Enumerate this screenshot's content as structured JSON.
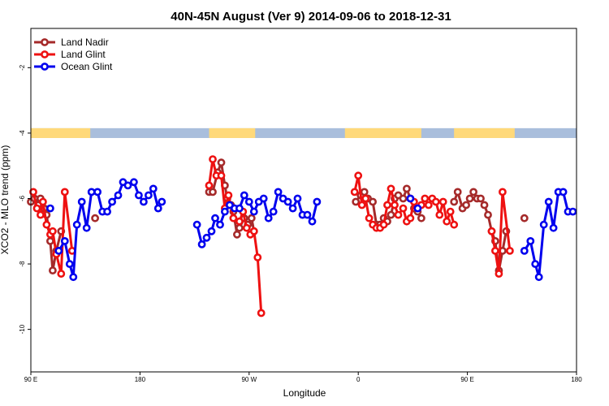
{
  "chart_data": {
    "type": "line",
    "title": "40N-45N August (Ver 9)   2014-09-06 to 2018-12-31",
    "xlabel": "Longitude",
    "ylabel": "XCO2 - MLO trend (ppm)",
    "xlim": [
      90,
      540
    ],
    "ylim": [
      -11.3,
      -0.8
    ],
    "x_ticks": [
      {
        "value": 90,
        "label": "90 E"
      },
      {
        "value": 180,
        "label": "180"
      },
      {
        "value": 270,
        "label": "90 W"
      },
      {
        "value": 360,
        "label": "0"
      },
      {
        "value": 450,
        "label": "90 E"
      },
      {
        "value": 540,
        "label": "180"
      }
    ],
    "y_ticks": [
      {
        "value": -2,
        "label": "-2"
      },
      {
        "value": -4,
        "label": "-4"
      },
      {
        "value": -6,
        "label": "-6"
      },
      {
        "value": -8,
        "label": "-8"
      },
      {
        "value": -10,
        "label": "-10"
      }
    ],
    "grid": false,
    "legend_position": "top-left",
    "land_ocean_strip": {
      "y_range": [
        -4.15,
        -3.85
      ],
      "land_color": "#ffd97a",
      "ocean_color": "#a9bedc",
      "land_lon_ranges": [
        [
          90,
          139
        ],
        [
          237,
          275
        ],
        [
          349,
          412
        ],
        [
          439,
          489
        ]
      ]
    },
    "series": [
      {
        "name": "Land Nadir",
        "color": "#a52a2a",
        "segments": [
          [
            [
              90,
              -6.1
            ],
            [
              93,
              -6.0
            ],
            [
              96,
              -6.2
            ],
            [
              98,
              -6.0
            ],
            [
              101,
              -6.3
            ],
            [
              103,
              -6.5
            ],
            [
              106,
              -7.3
            ],
            [
              108,
              -8.2
            ],
            [
              111,
              -7.6
            ],
            [
              115,
              -7.0
            ]
          ],
          [
            [
              143,
              -6.6
            ]
          ],
          [
            [
              237,
              -5.8
            ],
            [
              240,
              -5.8
            ],
            [
              244,
              -5.2
            ],
            [
              247,
              -4.9
            ],
            [
              250,
              -5.6
            ],
            [
              252,
              -6.0
            ],
            [
              255,
              -6.2
            ],
            [
              257,
              -6.4
            ],
            [
              260,
              -7.1
            ],
            [
              262,
              -6.9
            ],
            [
              266,
              -6.6
            ],
            [
              269,
              -6.8
            ],
            [
              272,
              -6.6
            ],
            [
              274,
              -7.0
            ]
          ],
          [
            [
              358,
              -6.1
            ],
            [
              362,
              -5.9
            ],
            [
              365,
              -5.8
            ],
            [
              368,
              -6.0
            ],
            [
              372,
              -6.1
            ],
            [
              375,
              -6.8
            ],
            [
              378,
              -6.8
            ],
            [
              381,
              -6.6
            ],
            [
              384,
              -6.7
            ],
            [
              387,
              -6.5
            ],
            [
              390,
              -6.0
            ],
            [
              393,
              -5.9
            ],
            [
              397,
              -6.0
            ],
            [
              400,
              -5.7
            ],
            [
              403,
              -6.0
            ],
            [
              406,
              -6.3
            ],
            [
              409,
              -6.4
            ],
            [
              412,
              -6.6
            ]
          ],
          [
            [
              439,
              -6.1
            ],
            [
              442,
              -5.8
            ],
            [
              446,
              -6.3
            ],
            [
              449,
              -6.2
            ],
            [
              452,
              -6.0
            ],
            [
              455,
              -5.8
            ],
            [
              458,
              -6.0
            ],
            [
              461,
              -6.0
            ],
            [
              464,
              -6.2
            ],
            [
              467,
              -6.5
            ],
            [
              470,
              -7.0
            ],
            [
              473,
              -7.3
            ],
            [
              476,
              -8.2
            ],
            [
              479,
              -7.6
            ],
            [
              482,
              -7.0
            ]
          ],
          [
            [
              497,
              -6.6
            ]
          ]
        ]
      },
      {
        "name": "Land Glint",
        "color": "#ee1111",
        "segments": [
          [
            [
              92,
              -5.8
            ],
            [
              95,
              -6.3
            ],
            [
              98,
              -6.5
            ],
            [
              100,
              -6.1
            ],
            [
              103,
              -6.8
            ],
            [
              106,
              -7.1
            ],
            [
              108,
              -7.0
            ],
            [
              111,
              -7.7
            ],
            [
              115,
              -8.3
            ],
            [
              118,
              -5.8
            ],
            [
              124,
              -7.6
            ]
          ],
          [
            [
              237,
              -5.6
            ],
            [
              240,
              -4.8
            ],
            [
              243,
              -5.3
            ],
            [
              247,
              -5.3
            ],
            [
              250,
              -6.3
            ],
            [
              253,
              -5.9
            ],
            [
              257,
              -6.6
            ],
            [
              262,
              -6.7
            ],
            [
              265,
              -6.4
            ],
            [
              268,
              -6.9
            ],
            [
              271,
              -7.1
            ],
            [
              274,
              -7.0
            ],
            [
              277,
              -7.8
            ],
            [
              280,
              -9.5
            ]
          ],
          [
            [
              357,
              -5.8
            ],
            [
              360,
              -5.3
            ],
            [
              363,
              -6.2
            ],
            [
              366,
              -6.0
            ],
            [
              369,
              -6.6
            ],
            [
              372,
              -6.8
            ],
            [
              375,
              -6.9
            ],
            [
              378,
              -6.9
            ],
            [
              381,
              -6.8
            ],
            [
              384,
              -6.2
            ],
            [
              387,
              -5.7
            ],
            [
              390,
              -6.2
            ],
            [
              393,
              -6.5
            ],
            [
              397,
              -6.3
            ],
            [
              400,
              -6.7
            ],
            [
              403,
              -6.6
            ],
            [
              406,
              -6.1
            ],
            [
              409,
              -6.3
            ],
            [
              412,
              -6.2
            ],
            [
              415,
              -6.0
            ],
            [
              418,
              -6.2
            ],
            [
              421,
              -6.0
            ],
            [
              424,
              -6.1
            ],
            [
              427,
              -6.5
            ],
            [
              430,
              -6.1
            ],
            [
              433,
              -6.7
            ],
            [
              436,
              -6.4
            ],
            [
              439,
              -6.8
            ]
          ],
          [
            [
              470,
              -7.0
            ],
            [
              473,
              -7.6
            ],
            [
              476,
              -8.3
            ],
            [
              479,
              -5.8
            ],
            [
              485,
              -7.6
            ]
          ]
        ]
      },
      {
        "name": "Ocean Glint",
        "color": "#0000ee",
        "segments": [
          [
            [
              106,
              -6.3
            ]
          ],
          [
            [
              113,
              -7.6
            ],
            [
              118,
              -7.3
            ],
            [
              122,
              -8.0
            ],
            [
              125,
              -8.4
            ],
            [
              128,
              -6.8
            ],
            [
              132,
              -6.1
            ],
            [
              136,
              -6.9
            ],
            [
              140,
              -5.8
            ],
            [
              145,
              -5.8
            ],
            [
              149,
              -6.4
            ],
            [
              153,
              -6.4
            ],
            [
              157,
              -6.1
            ],
            [
              162,
              -5.9
            ],
            [
              166,
              -5.5
            ],
            [
              170,
              -5.6
            ],
            [
              175,
              -5.5
            ],
            [
              179,
              -5.9
            ],
            [
              183,
              -6.1
            ],
            [
              187,
              -5.9
            ],
            [
              191,
              -5.7
            ],
            [
              195,
              -6.3
            ],
            [
              198,
              -6.1
            ]
          ],
          [
            [
              227,
              -6.8
            ],
            [
              231,
              -7.4
            ],
            [
              235,
              -7.2
            ],
            [
              239,
              -7.0
            ],
            [
              242,
              -6.6
            ],
            [
              246,
              -6.8
            ],
            [
              250,
              -6.4
            ],
            [
              254,
              -6.2
            ],
            [
              258,
              -6.3
            ],
            [
              262,
              -6.3
            ],
            [
              266,
              -5.9
            ],
            [
              270,
              -6.1
            ],
            [
              274,
              -6.4
            ],
            [
              278,
              -6.1
            ],
            [
              282,
              -6.0
            ],
            [
              286,
              -6.6
            ],
            [
              290,
              -6.4
            ],
            [
              294,
              -5.8
            ],
            [
              298,
              -6.0
            ],
            [
              302,
              -6.1
            ],
            [
              306,
              -6.3
            ],
            [
              310,
              -6.0
            ],
            [
              314,
              -6.5
            ],
            [
              318,
              -6.5
            ],
            [
              322,
              -6.7
            ],
            [
              326,
              -6.1
            ]
          ],
          [
            [
              403,
              -6.0
            ]
          ],
          [
            [
              409,
              -6.3
            ]
          ],
          [
            [
              497,
              -7.6
            ],
            [
              502,
              -7.3
            ],
            [
              506,
              -8.0
            ],
            [
              509,
              -8.4
            ],
            [
              513,
              -6.8
            ],
            [
              517,
              -6.1
            ],
            [
              521,
              -6.9
            ],
            [
              525,
              -5.8
            ],
            [
              529,
              -5.8
            ],
            [
              533,
              -6.4
            ],
            [
              537,
              -6.4
            ]
          ]
        ]
      }
    ]
  }
}
